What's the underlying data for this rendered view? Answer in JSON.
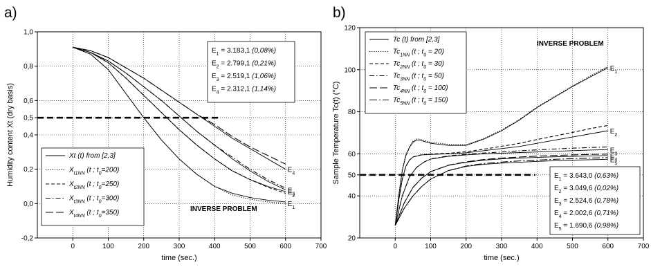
{
  "chart_data": [
    {
      "panel_label": "a)",
      "type": "line",
      "xlabel": "time (sec.)",
      "ylabel": "Humidity content Xt (dry basis)",
      "xlim": [
        -100,
        700
      ],
      "ylim": [
        -0.2,
        1.0
      ],
      "xticks": [
        "0",
        "100",
        "200",
        "300",
        "400",
        "500",
        "600",
        "700"
      ],
      "yticks": [
        "-0,2",
        "0,0",
        "0,2",
        "0,4",
        "0,5",
        "0,6",
        "0,8",
        "1,0"
      ],
      "ytick_values": [
        -0.2,
        0.0,
        0.2,
        0.4,
        0.5,
        0.6,
        0.8,
        1.0
      ],
      "grid": true,
      "legend": {
        "placement": "bottom-left",
        "entries": [
          {
            "label": "Xt (t) from [2,3]",
            "style": "solid"
          },
          {
            "label": "X_t1NN (t ; t_0=200)",
            "base": "X",
            "sub": "t1NN",
            "rest": " (t ; t",
            "sub2": "0",
            "tail": "=200)",
            "style": "dotted"
          },
          {
            "label": "X_t2NN (t ; t_0=250)",
            "base": "X",
            "sub": "t2NN",
            "rest": " (t ; t",
            "sub2": "0",
            "tail": "=250)",
            "style": "dashed"
          },
          {
            "label": "X_t3NN (t ; t_0=300)",
            "base": "X",
            "sub": "t3NN",
            "rest": " (t ; t",
            "sub2": "0",
            "tail": "=300)",
            "style": "dashdot"
          },
          {
            "label": "X_t4NN (t ; t_0=350)",
            "base": "X",
            "sub": "t4NN",
            "rest": " (t ; t",
            "sub2": "0",
            "tail": "=350)",
            "style": "longdash"
          }
        ]
      },
      "stats": [
        {
          "id": "E1",
          "sub": "1",
          "value": "3.183,1",
          "pct": "(0,08%)"
        },
        {
          "id": "E2",
          "sub": "2",
          "value": "2.799,1",
          "pct": "(0,21%)"
        },
        {
          "id": "E3",
          "sub": "3",
          "value": "2.519,1",
          "pct": "(1,06%)"
        },
        {
          "id": "E4",
          "sub": "4",
          "value": "2.312,1",
          "pct": "(1,14%)"
        }
      ],
      "annotation": "INVERSE PROBLEM",
      "threshold": {
        "y": 0.5,
        "x_range": [
          -100,
          410
        ]
      },
      "series": [
        {
          "name": "E1",
          "label": "E",
          "sub": "1",
          "style": "solid",
          "x": [
            0,
            50,
            100,
            150,
            200,
            250,
            300,
            350,
            400,
            450,
            500,
            550,
            600
          ],
          "y": [
            0.91,
            0.87,
            0.78,
            0.64,
            0.5,
            0.37,
            0.26,
            0.17,
            0.1,
            0.06,
            0.035,
            0.02,
            0.01
          ]
        },
        {
          "name": "E2",
          "label": "E",
          "sub": "2",
          "style": "solid",
          "x": [
            0,
            50,
            100,
            150,
            200,
            250,
            300,
            350,
            400,
            450,
            500,
            550,
            600
          ],
          "y": [
            0.91,
            0.88,
            0.82,
            0.73,
            0.63,
            0.53,
            0.43,
            0.34,
            0.26,
            0.19,
            0.14,
            0.1,
            0.07
          ]
        },
        {
          "name": "E3",
          "label": "E",
          "sub": "3",
          "style": "solid",
          "x": [
            0,
            50,
            100,
            150,
            200,
            250,
            300,
            350,
            400,
            450,
            500,
            550,
            600
          ],
          "y": [
            0.91,
            0.88,
            0.83,
            0.76,
            0.68,
            0.6,
            0.51,
            0.42,
            0.34,
            0.26,
            0.19,
            0.13,
            0.08
          ]
        },
        {
          "name": "E4",
          "label": "E",
          "sub": "4",
          "style": "solid",
          "x": [
            0,
            50,
            100,
            150,
            200,
            250,
            300,
            350,
            400,
            450,
            500,
            550,
            600
          ],
          "y": [
            0.91,
            0.89,
            0.85,
            0.79,
            0.73,
            0.66,
            0.59,
            0.52,
            0.45,
            0.38,
            0.32,
            0.26,
            0.2
          ]
        },
        {
          "name": "NN1",
          "style": "dotted",
          "x": [
            0,
            50,
            100,
            150,
            200,
            250,
            300,
            350,
            400,
            450,
            500,
            550,
            600
          ],
          "y": [
            0.91,
            0.87,
            0.78,
            0.64,
            0.5,
            0.37,
            0.26,
            0.17,
            0.1,
            0.05,
            0.025,
            0.01,
            0.0
          ]
        },
        {
          "name": "NN2",
          "style": "dashed",
          "x": [
            0,
            50,
            100,
            150,
            200,
            250,
            300,
            350,
            400,
            450,
            500,
            550,
            600
          ],
          "y": [
            0.91,
            0.88,
            0.82,
            0.73,
            0.63,
            0.53,
            0.43,
            0.34,
            0.26,
            0.19,
            0.14,
            0.095,
            0.06
          ]
        },
        {
          "name": "NN3",
          "style": "dashdot",
          "x": [
            0,
            50,
            100,
            150,
            200,
            250,
            300,
            350,
            400,
            450,
            500,
            550,
            600
          ],
          "y": [
            0.91,
            0.88,
            0.83,
            0.76,
            0.68,
            0.6,
            0.51,
            0.42,
            0.34,
            0.27,
            0.2,
            0.14,
            0.09
          ]
        },
        {
          "name": "NN4",
          "style": "longdash",
          "x": [
            0,
            50,
            100,
            150,
            200,
            250,
            300,
            350,
            400,
            450,
            500,
            550,
            600
          ],
          "y": [
            0.91,
            0.89,
            0.85,
            0.79,
            0.73,
            0.66,
            0.59,
            0.52,
            0.46,
            0.39,
            0.33,
            0.28,
            0.23
          ]
        }
      ]
    },
    {
      "panel_label": "b)",
      "type": "line",
      "xlabel": "time (sec.)",
      "ylabel": "Sample Temperature Tc(t) (°C)",
      "xlim": [
        -100,
        700
      ],
      "ylim": [
        20,
        120
      ],
      "xticks": [
        "0",
        "100",
        "200",
        "300",
        "400",
        "500",
        "600",
        "700"
      ],
      "yticks": [
        "20",
        "40",
        "50",
        "60",
        "80",
        "100",
        "120"
      ],
      "ytick_values": [
        20,
        40,
        50,
        60,
        80,
        100,
        120
      ],
      "grid": true,
      "legend": {
        "placement": "top-left",
        "entries": [
          {
            "label": "Tc (t) from [2,3]",
            "style": "solid"
          },
          {
            "label": "Tc_1NN (t ; t_0 = 20)",
            "base": "Tc",
            "sub": "1NN",
            "rest": " (t ; t",
            "sub2": "0",
            "tail": " = 20)",
            "style": "dotted"
          },
          {
            "label": "Tc_2NN (t ; t_0 = 30)",
            "base": "Tc",
            "sub": "2NN",
            "rest": " (t ; t",
            "sub2": "0",
            "tail": " = 30)",
            "style": "dashed"
          },
          {
            "label": "Tc_3NN (t ; t_0 = 50)",
            "base": "Tc",
            "sub": "3NN",
            "rest": " (t ; t",
            "sub2": "0",
            "tail": " = 50)",
            "style": "dashdot"
          },
          {
            "label": "Tc_4NN (t ; t_0 = 100)",
            "base": "Tc",
            "sub": "4NN",
            "rest": " (t ; t",
            "sub2": "0",
            "tail": " = 100)",
            "style": "longdash"
          },
          {
            "label": "Tc_5NN (t ; t_0 = 150)",
            "base": "Tc",
            "sub": "5NN",
            "rest": " (t ; t",
            "sub2": "0",
            "tail": " = 150)",
            "style": "longdashdot"
          }
        ]
      },
      "stats": [
        {
          "id": "E1",
          "sub": "1",
          "value": "3.643,0",
          "pct": "(0,63%)"
        },
        {
          "id": "E2",
          "sub": "2",
          "value": "3.049,6",
          "pct": "(0,02%)"
        },
        {
          "id": "E3",
          "sub": "3",
          "value": "2.524,6",
          "pct": "(0,78%)"
        },
        {
          "id": "E4",
          "sub": "4",
          "value": "2.002,6",
          "pct": "(0,71%)"
        },
        {
          "id": "E5",
          "sub": "5",
          "value": "1.690,6",
          "pct": "(0,98%)"
        }
      ],
      "annotation": "INVERSE PROBLEM",
      "threshold": {
        "y": 50,
        "x_range": [
          -100,
          395
        ]
      },
      "series": [
        {
          "name": "E1",
          "label": "E",
          "sub": "1",
          "style": "solid",
          "x": [
            0,
            10,
            20,
            30,
            40,
            50,
            60,
            70,
            80,
            100,
            150,
            200,
            250,
            300,
            350,
            400,
            450,
            500,
            550,
            600
          ],
          "y": [
            26,
            40,
            52,
            59,
            63,
            65.5,
            66.5,
            66.5,
            66,
            65,
            64,
            64,
            67,
            71,
            76,
            82,
            87,
            92,
            96.5,
            101
          ]
        },
        {
          "name": "E2",
          "label": "E",
          "sub": "2",
          "style": "solid",
          "x": [
            0,
            10,
            20,
            30,
            40,
            50,
            75,
            100,
            150,
            200,
            250,
            300,
            350,
            400,
            450,
            500,
            550,
            600
          ],
          "y": [
            26,
            38,
            48,
            54,
            57,
            58.5,
            59.5,
            59.7,
            60,
            60.5,
            61.5,
            62.5,
            63.5,
            65,
            66.5,
            68,
            69.5,
            71
          ]
        },
        {
          "name": "E3",
          "label": "E",
          "sub": "3",
          "style": "solid",
          "x": [
            0,
            20,
            40,
            60,
            80,
            100,
            150,
            200,
            250,
            300,
            350,
            400,
            450,
            500,
            550,
            600
          ],
          "y": [
            26,
            40,
            49,
            53.5,
            56,
            57.5,
            58.8,
            59.5,
            60,
            60.3,
            60.6,
            60.9,
            61.2,
            61.5,
            61.8,
            62
          ]
        },
        {
          "name": "E4",
          "label": "E",
          "sub": "4",
          "style": "solid",
          "x": [
            0,
            25,
            50,
            75,
            100,
            150,
            200,
            250,
            300,
            350,
            400,
            450,
            500,
            550,
            600
          ],
          "y": [
            26,
            36.5,
            44,
            48.5,
            51.5,
            54.5,
            56,
            57,
            57.6,
            58,
            58.3,
            58.6,
            58.8,
            59,
            59.2
          ]
        },
        {
          "name": "E5",
          "label": "E",
          "sub": "5",
          "style": "solid",
          "x": [
            0,
            25,
            50,
            75,
            100,
            150,
            200,
            250,
            300,
            350,
            400,
            450,
            500,
            550,
            600
          ],
          "y": [
            26,
            34,
            40,
            44.5,
            48,
            52,
            54,
            55,
            55.6,
            56,
            56.4,
            56.7,
            57,
            57.2,
            57.4
          ]
        },
        {
          "name": "NN1",
          "style": "dotted",
          "x": [
            0,
            10,
            20,
            30,
            40,
            50,
            60,
            70,
            80,
            100,
            150,
            200,
            250,
            300,
            350,
            400,
            450,
            500,
            550,
            600
          ],
          "y": [
            26,
            40.5,
            52.5,
            59.5,
            63.5,
            66,
            67,
            67,
            66.5,
            65.5,
            64.5,
            64.3,
            67.3,
            71.3,
            76.3,
            82.3,
            87.3,
            92.3,
            97,
            101.5
          ]
        },
        {
          "name": "NN2",
          "style": "dashed",
          "x": [
            0,
            10,
            20,
            30,
            40,
            50,
            75,
            100,
            150,
            200,
            250,
            300,
            350,
            400,
            450,
            500,
            550,
            600
          ],
          "y": [
            26,
            38,
            48,
            54,
            57,
            58.5,
            59.6,
            59.9,
            60.3,
            61,
            62.2,
            63.6,
            65,
            66.8,
            68.5,
            70.2,
            72,
            73.5
          ]
        },
        {
          "name": "NN3",
          "style": "dashdot",
          "x": [
            0,
            20,
            40,
            60,
            80,
            100,
            150,
            200,
            250,
            300,
            350,
            400,
            450,
            500,
            550,
            600
          ],
          "y": [
            26,
            40,
            49,
            53.5,
            56,
            57.6,
            59,
            59.8,
            60.4,
            60.9,
            61.4,
            61.9,
            62.3,
            62.7,
            63,
            63.3
          ]
        },
        {
          "name": "NN4",
          "style": "longdash",
          "x": [
            0,
            25,
            50,
            75,
            100,
            150,
            200,
            250,
            300,
            350,
            400,
            450,
            500,
            550,
            600
          ],
          "y": [
            26,
            36.5,
            44,
            48.5,
            51.5,
            54.6,
            56.2,
            57.3,
            58,
            58.5,
            58.9,
            59.2,
            59.5,
            59.7,
            59.9
          ]
        },
        {
          "name": "NN5",
          "style": "longdashdot",
          "x": [
            0,
            25,
            50,
            75,
            100,
            150,
            200,
            250,
            300,
            350,
            400,
            450,
            500,
            550,
            600
          ],
          "y": [
            26,
            34,
            40,
            44.5,
            48,
            52,
            54.2,
            55.4,
            56.1,
            56.6,
            57,
            57.4,
            57.7,
            58,
            58.2
          ]
        }
      ]
    }
  ]
}
